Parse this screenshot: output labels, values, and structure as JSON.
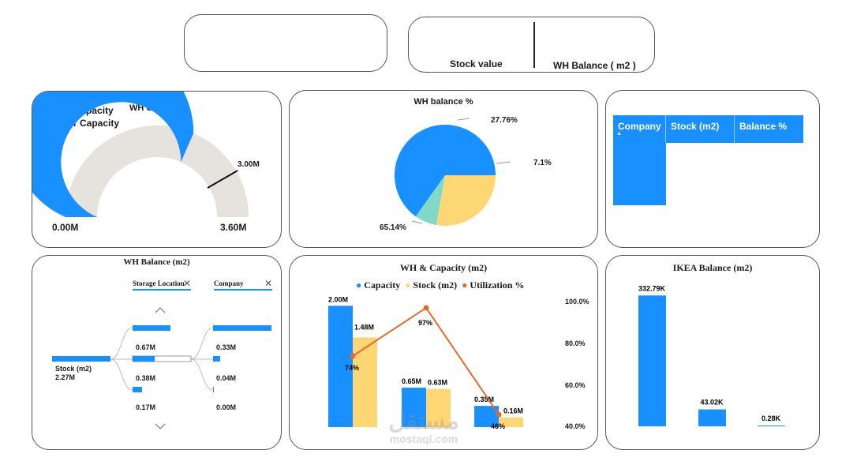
{
  "kpi": {
    "stock_value_label": "Stock value",
    "wh_balance_label": "WH Balance ( m2 )"
  },
  "utilization": {
    "title": "WH Utilization",
    "legend": [
      "Over Capacity",
      "Under Capacity"
    ],
    "legend_colors": [
      "#E0202B",
      "#1890FF"
    ],
    "min_label": "0.00M",
    "max_label": "3.60M",
    "target_label": "3.00M",
    "value": 2.27,
    "min": 0,
    "max": 3.6,
    "target": 3.0
  },
  "balance_pct": {
    "title": "WH balance %",
    "labels": [
      "27.76%",
      "7.1%",
      "65.14%"
    ]
  },
  "company_table": {
    "headers": [
      "Company",
      "Stock (m2)",
      "Balance %"
    ],
    "sort_icon": "sort-up-icon"
  },
  "decomp": {
    "title": "WH Balance (m2)",
    "filter_1": "Storage Location",
    "filter_2": "Company",
    "root_label": "Stock (m2)",
    "root_value": "2.27M",
    "level1_values": [
      "0.67M",
      "0.38M",
      "0.17M"
    ],
    "level2_values": [
      "0.33M",
      "0.04M",
      "0.00M"
    ]
  },
  "capacity": {
    "title": "WH & Capacity (m2)",
    "legend": [
      "Capacity",
      "Stock (m2)",
      "Utilization %"
    ],
    "colors": [
      "#1890FF",
      "#FDD773",
      "#E06B2E"
    ],
    "right_axis_ticks": [
      "100.0%",
      "80.0%",
      "60.0%",
      "40.0%"
    ]
  },
  "ikea": {
    "title": "IKEA Balance (m2)"
  },
  "watermark": {
    "arabic": "مستقل",
    "latin": "mostaql.com"
  },
  "chart_data": [
    {
      "type": "pie",
      "title": "WH balance %",
      "slices": [
        {
          "label": "65.14%",
          "value": 65.14,
          "color": "#1890FF"
        },
        {
          "label": "27.76%",
          "value": 27.76,
          "color": "#FDD773"
        },
        {
          "label": "7.1%",
          "value": 7.1,
          "color": "#7FD9C6"
        }
      ]
    },
    {
      "type": "bar",
      "title": "WH & Capacity (m2)",
      "categories": [
        "",
        "",
        ""
      ],
      "series": [
        {
          "name": "Capacity",
          "values": [
            2.0,
            0.65,
            0.35
          ],
          "labels": [
            "2.00M",
            "0.65M",
            "0.35M"
          ],
          "color": "#1890FF"
        },
        {
          "name": "Stock (m2)",
          "values": [
            1.48,
            0.63,
            0.16
          ],
          "labels": [
            "1.48M",
            "0.63M",
            "0.16M"
          ],
          "color": "#FDD773"
        },
        {
          "name": "Utilization %",
          "type": "line",
          "values": [
            74,
            97,
            46
          ],
          "labels": [
            "74%",
            "97%",
            "46%"
          ],
          "color": "#E06B2E"
        }
      ],
      "ylim": [
        0,
        2.2
      ],
      "y2lim": [
        40,
        100
      ]
    },
    {
      "type": "bar",
      "title": "IKEA Balance (m2)",
      "categories": [
        "",
        "",
        ""
      ],
      "values": [
        332.79,
        43.02,
        0.28
      ],
      "labels": [
        "332.79K",
        "43.02K",
        "0.28K"
      ],
      "ylim": [
        0,
        350
      ]
    }
  ]
}
